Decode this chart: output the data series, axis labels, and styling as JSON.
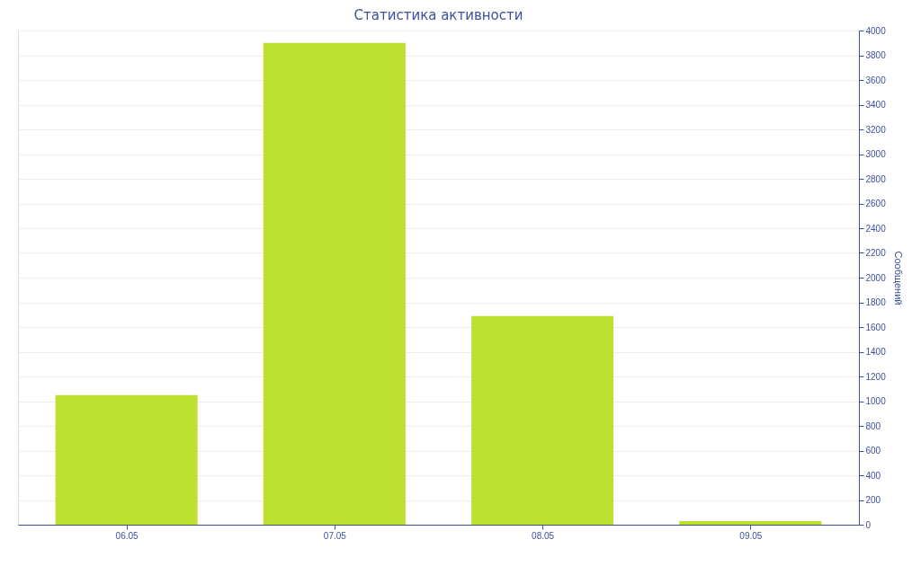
{
  "chart_data": {
    "type": "bar",
    "title": "Статистика активности",
    "ylabel": "Сообщений",
    "categories": [
      "06.05",
      "07.05",
      "08.05",
      "09.05"
    ],
    "series": [
      {
        "color": "#bce131",
        "values": [
          1050,
          3900,
          1690,
          30
        ]
      }
    ],
    "ylim": [
      0,
      4000
    ],
    "yticks": [
      0,
      200,
      400,
      600,
      800,
      1000,
      1200,
      1400,
      1600,
      1800,
      2000,
      2200,
      2400,
      2600,
      2800,
      3000,
      3200,
      3400,
      3600,
      3800,
      4000
    ],
    "grid": "y"
  }
}
